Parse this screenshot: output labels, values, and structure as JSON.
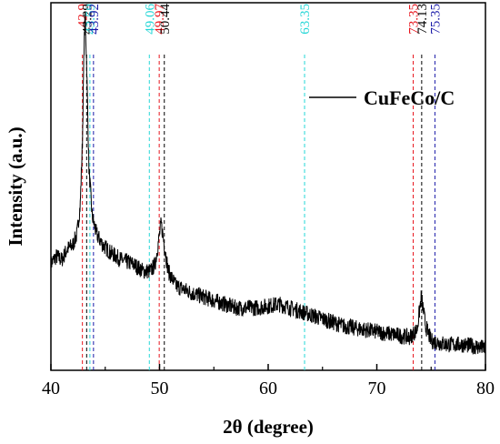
{
  "chart_data": {
    "type": "line",
    "title": "",
    "xlabel": "2θ (degree)",
    "ylabel": "Intensity (a.u.)",
    "xlim": [
      40,
      80
    ],
    "x_ticks": [
      "40",
      "50",
      "60",
      "70",
      "80"
    ],
    "y_ticks_labeled": false,
    "grid": false,
    "legend_position": "top-right",
    "series": [
      {
        "name": "CuFeCo/C",
        "color": "#000000",
        "points": [
          [
            40.0,
            0.29
          ],
          [
            40.5,
            0.31
          ],
          [
            41.0,
            0.3
          ],
          [
            41.5,
            0.33
          ],
          [
            42.0,
            0.34
          ],
          [
            42.4,
            0.37
          ],
          [
            42.7,
            0.45
          ],
          [
            42.9,
            0.62
          ],
          [
            43.05,
            0.88
          ],
          [
            43.15,
            0.97
          ],
          [
            43.3,
            0.82
          ],
          [
            43.5,
            0.55
          ],
          [
            43.8,
            0.42
          ],
          [
            44.2,
            0.37
          ],
          [
            44.8,
            0.34
          ],
          [
            45.5,
            0.32
          ],
          [
            46.5,
            0.3
          ],
          [
            47.5,
            0.29
          ],
          [
            48.5,
            0.27
          ],
          [
            49.2,
            0.27
          ],
          [
            49.6,
            0.29
          ],
          [
            49.9,
            0.35
          ],
          [
            50.15,
            0.4
          ],
          [
            50.4,
            0.35
          ],
          [
            50.8,
            0.27
          ],
          [
            51.5,
            0.23
          ],
          [
            53.0,
            0.21
          ],
          [
            55.0,
            0.19
          ],
          [
            57.0,
            0.17
          ],
          [
            59.0,
            0.17
          ],
          [
            61.0,
            0.18
          ],
          [
            63.0,
            0.16
          ],
          [
            65.0,
            0.14
          ],
          [
            67.0,
            0.12
          ],
          [
            69.0,
            0.11
          ],
          [
            71.0,
            0.1
          ],
          [
            73.0,
            0.09
          ],
          [
            73.7,
            0.11
          ],
          [
            74.1,
            0.2
          ],
          [
            74.5,
            0.12
          ],
          [
            75.0,
            0.08
          ],
          [
            76.5,
            0.07
          ],
          [
            78.0,
            0.07
          ],
          [
            80.0,
            0.06
          ]
        ]
      }
    ],
    "reference_lines": [
      {
        "x": 42.9,
        "label": "42.9",
        "color": "#e8141c"
      },
      {
        "x": 43.29,
        "label": "43.29",
        "color": "#000000"
      },
      {
        "x": 43.59,
        "label": "43.59",
        "color": "#22d6d6"
      },
      {
        "x": 43.92,
        "label": "43.92",
        "color": "#1a1aa8"
      },
      {
        "x": 49.06,
        "label": "49.06",
        "color": "#22d6d6"
      },
      {
        "x": 49.97,
        "label": "49.97",
        "color": "#e8141c"
      },
      {
        "x": 50.44,
        "label": "50.44",
        "color": "#000000"
      },
      {
        "x": 63.35,
        "label": "63.35",
        "color": "#22d6d6"
      },
      {
        "x": 73.35,
        "label": "73.35",
        "color": "#e8141c"
      },
      {
        "x": 74.13,
        "label": "74.13",
        "color": "#000000"
      },
      {
        "x": 75.35,
        "label": "75.35",
        "color": "#1a1aa8"
      }
    ]
  }
}
